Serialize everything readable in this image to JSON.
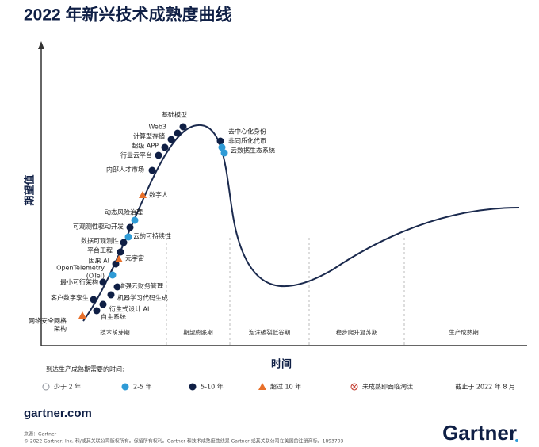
{
  "title": "2022 年新兴技术成熟度曲线",
  "y_axis_label": "期望值",
  "x_axis_label": "时间",
  "phases": [
    "技术萌芽期",
    "期望膨胀期",
    "泡沫破裂低谷期",
    "稳步爬升复苏期",
    "生产成熟期"
  ],
  "legend": {
    "title": "到达生产成熟期需要的时间:",
    "items": [
      {
        "label": "少于 2 年",
        "shape": "hollow",
        "color": "#8a8f98"
      },
      {
        "label": "2-5 年",
        "shape": "circle",
        "color": "#2f9bd6"
      },
      {
        "label": "5-10 年",
        "shape": "circle",
        "color": "#0f1f45"
      },
      {
        "label": "超过 10 年",
        "shape": "triangle",
        "color": "#e8702a"
      },
      {
        "label": "未成熟即面临淘汰",
        "shape": "cross",
        "color": "#c0392b"
      }
    ],
    "as_of": "截止于 2022 年 8 月"
  },
  "technologies": [
    {
      "label": [
        "网络安全网格",
        "架构"
      ],
      "marker": 3
    },
    {
      "label": [
        "自主系统"
      ],
      "marker": 2
    },
    {
      "label": [
        "衍生式设计 AI"
      ],
      "marker": 2
    },
    {
      "label": [
        "客户数字孪生"
      ],
      "marker": 2
    },
    {
      "label": [
        "机器学习代码生成"
      ],
      "marker": 2
    },
    {
      "label": [
        "最小可行架构"
      ],
      "marker": 2
    },
    {
      "label": [
        "增强云财务管理"
      ],
      "marker": 2
    },
    {
      "label": [
        "OpenTelemetry",
        "(OTel)"
      ],
      "marker": 1
    },
    {
      "label": [
        "因果 AI"
      ],
      "marker": 2
    },
    {
      "label": [
        "元宇宙"
      ],
      "marker": 3
    },
    {
      "label": [
        "平台工程"
      ],
      "marker": 2
    },
    {
      "label": [
        "数据可观测性"
      ],
      "marker": 2
    },
    {
      "label": [
        "云的可持续性"
      ],
      "marker": 1
    },
    {
      "label": [
        "可观测性驱动开发"
      ],
      "marker": 2
    },
    {
      "label": [
        "动态风险治理"
      ],
      "marker": 1
    },
    {
      "label": [
        "数字人"
      ],
      "marker": 3
    },
    {
      "label": [
        "内部人才市场"
      ],
      "marker": 2
    },
    {
      "label": [
        "行业云平台"
      ],
      "marker": 2
    },
    {
      "label": [
        "超级 APP"
      ],
      "marker": 2
    },
    {
      "label": [
        "计算型存储"
      ],
      "marker": 2
    },
    {
      "label": [
        "Web3"
      ],
      "marker": 2
    },
    {
      "label": [
        "基础模型"
      ],
      "marker": 2
    },
    {
      "label": [
        "去中心化身份"
      ],
      "marker": 2
    },
    {
      "label": [
        "非同质化代币"
      ],
      "marker": 1
    },
    {
      "label": [
        "云数据生态系统"
      ],
      "marker": 1
    }
  ],
  "footer": {
    "site": "gartner.com",
    "source": "来源：Gartner",
    "copyright": "© 2022 Gartner, Inc. 和/或其关联公司版权所有。保留所有权利。Gartner 和技术成熟度曲线是 Gartner 或其关联公司在美国的注册商标。1893703",
    "logo": "Gartner"
  }
}
